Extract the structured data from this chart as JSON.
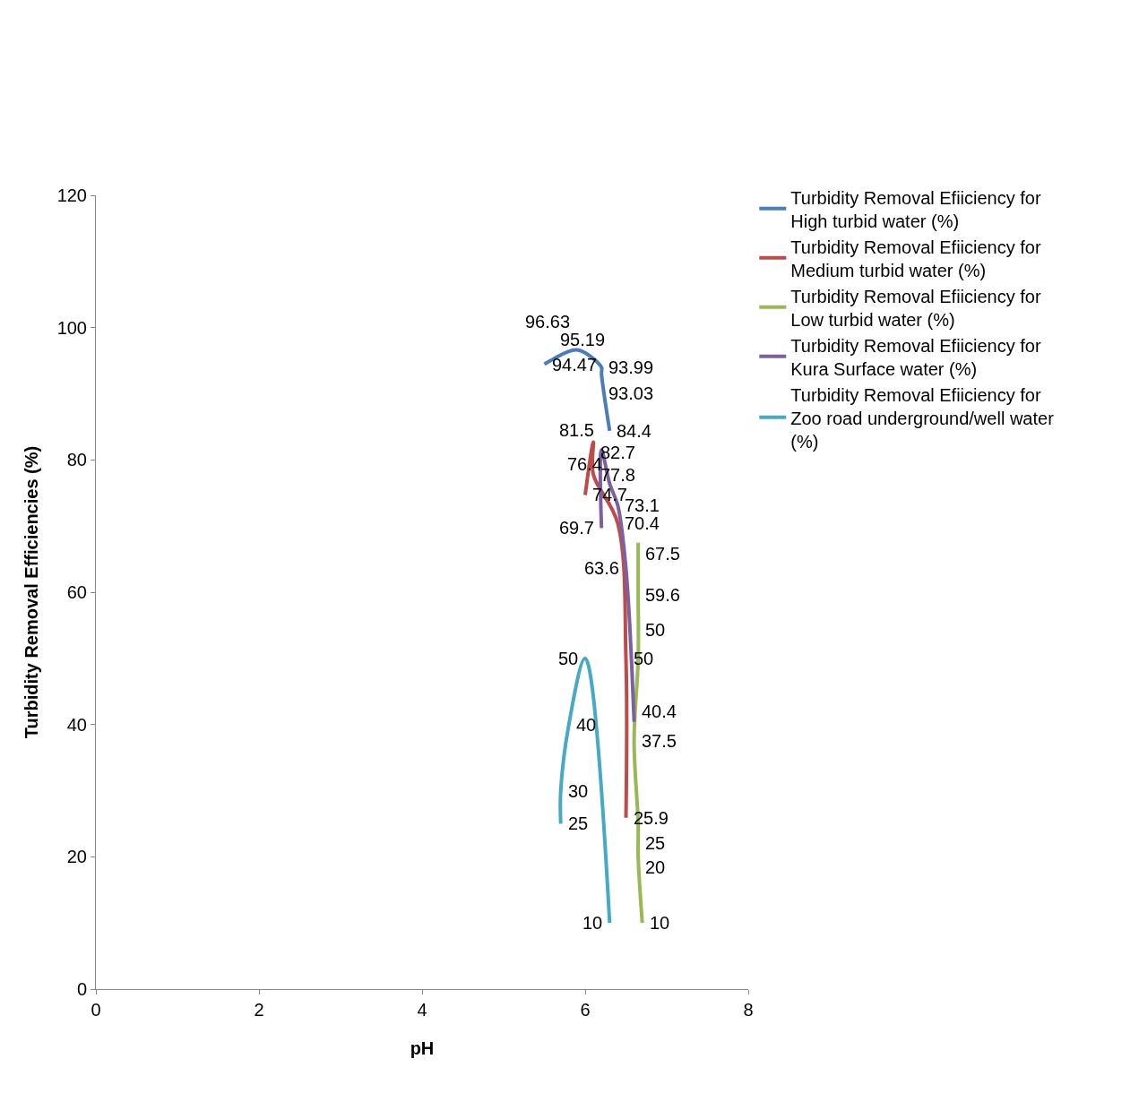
{
  "chart_data": {
    "type": "line",
    "xlabel": "pH",
    "ylabel": "Turbidity Removal Efficiencies (%)",
    "xlim": [
      0,
      8
    ],
    "xticks": [
      0,
      2,
      4,
      6,
      8
    ],
    "ylim": [
      0,
      120
    ],
    "grid": false,
    "yticks": [
      0,
      20,
      40,
      60,
      80,
      100,
      120
    ],
    "legend": "right",
    "marker": "none",
    "line_style": "solid",
    "data_labels": true,
    "series": [
      {
        "name": "Turbidity Removal Efiiciency for High turbid water (%)",
        "color": "#4a7ebb",
        "x": [
          5.5,
          5.6,
          5.9,
          6.2,
          6.2,
          6.3
        ],
        "values": [
          94.47,
          95.19,
          96.63,
          93.99,
          93.03,
          84.4
        ]
      },
      {
        "name": "Turbidity Removal Efiiciency for Medium turbid water (%)",
        "color": "#be4b48",
        "x": [
          6.0,
          6.1,
          6.1,
          6.4,
          6.5,
          6.5
        ],
        "values": [
          74.7,
          82.7,
          77.8,
          70.4,
          50,
          25.9
        ]
      },
      {
        "name": "Turbidity Removal Efiiciency for Low turbid water (%)",
        "color": "#98b954",
        "x": [
          6.65,
          6.65,
          6.65,
          6.6,
          6.65,
          6.65,
          6.7
        ],
        "values": [
          67.5,
          59.6,
          50,
          37.5,
          25,
          20,
          10
        ]
      },
      {
        "name": "Turbidity Removal Efiiciency for Kura Surface water (%)",
        "color": "#7d60a0",
        "x": [
          6.2,
          6.2,
          6.3,
          6.4,
          6.5,
          6.6
        ],
        "values": [
          69.7,
          81.5,
          76.4,
          73.1,
          63.6,
          40.4
        ]
      },
      {
        "name": "Turbidity Removal Efiiciency for Zoo road underground/well water (%)",
        "color": "#46aac5",
        "x": [
          5.7,
          5.7,
          5.8,
          6.0,
          6.3
        ],
        "values": [
          25,
          30,
          40,
          50,
          10
        ]
      }
    ]
  }
}
